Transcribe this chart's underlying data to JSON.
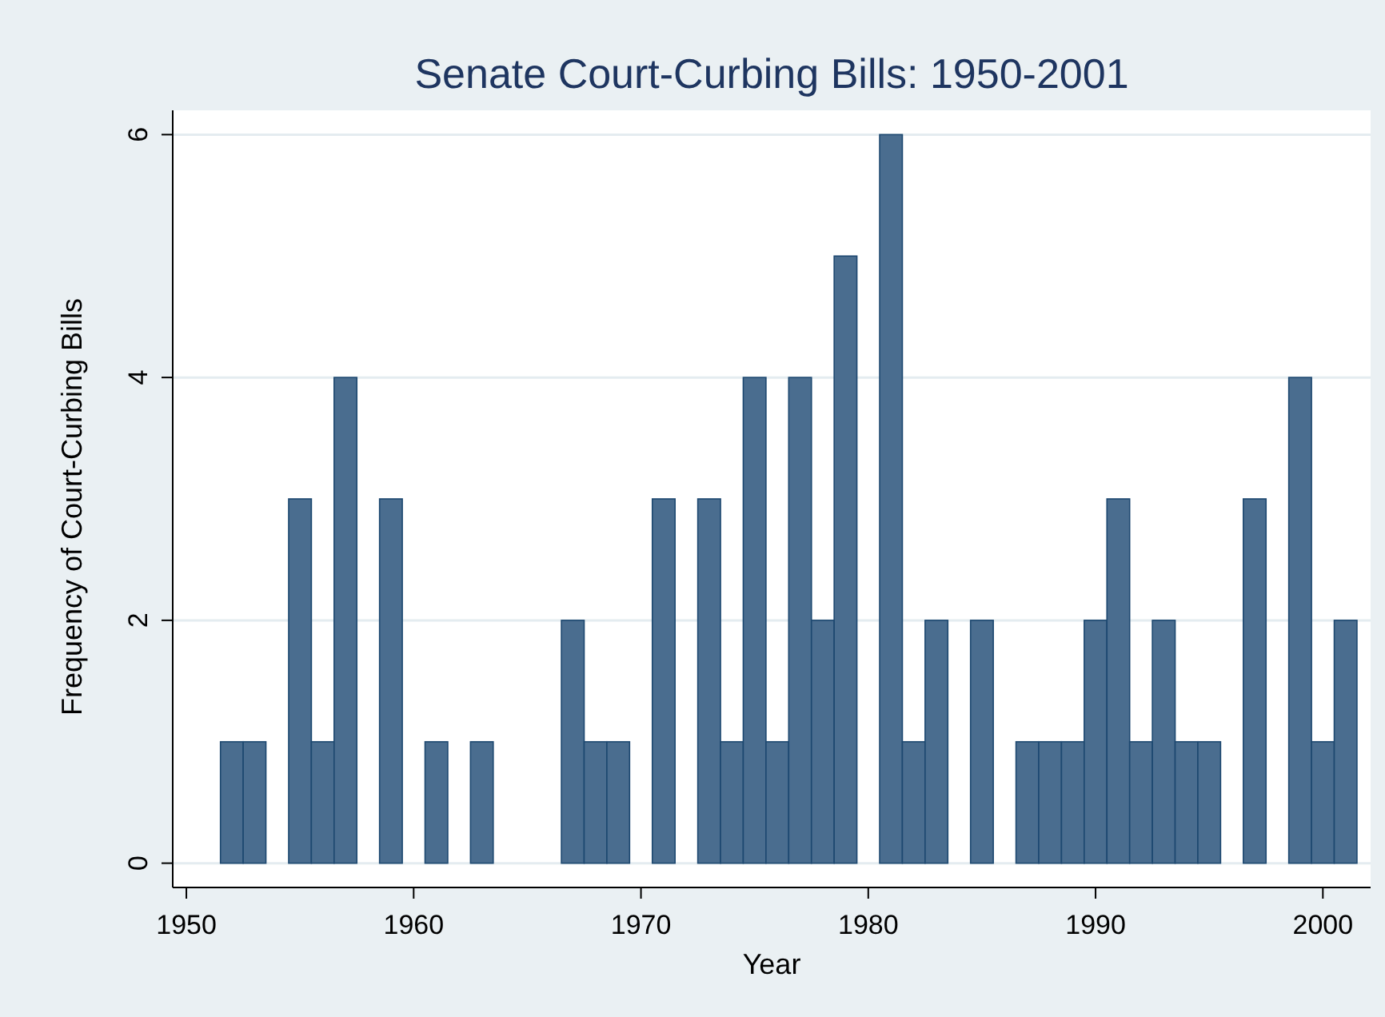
{
  "chart_data": {
    "type": "histogram",
    "title": "Senate Court-Curbing Bills: 1950-2001",
    "xlabel": "Year",
    "ylabel": "Frequency of Court-Curbing Bills",
    "bins": [
      1951.5,
      1952.5,
      1953.5,
      1954.5,
      1955.5,
      1956.5,
      1957.5,
      1958.5,
      1959.5,
      1960.5,
      1961.5,
      1962.5,
      1963.5,
      1964.5,
      1965.5,
      1966.5,
      1967.5,
      1968.5,
      1969.5,
      1970.5,
      1971.5,
      1972.5,
      1973.5,
      1974.5,
      1975.5,
      1976.5,
      1977.5,
      1978.5,
      1979.5,
      1980.5,
      1981.5,
      1982.5,
      1983.5,
      1984.5,
      1985.5,
      1986.5,
      1987.5,
      1988.5,
      1989.5,
      1990.5,
      1991.5,
      1992.5,
      1993.5,
      1994.5,
      1995.5,
      1996.5,
      1997.5,
      1998.5,
      1999.5,
      2000.5,
      2001.5
    ],
    "values": [
      1,
      1,
      0,
      3,
      1,
      4,
      0,
      3,
      0,
      1,
      0,
      1,
      0,
      0,
      0,
      2,
      1,
      1,
      0,
      3,
      0,
      3,
      1,
      4,
      1,
      4,
      2,
      5,
      0,
      6,
      1,
      2,
      0,
      2,
      0,
      1,
      1,
      1,
      2,
      3,
      1,
      2,
      1,
      1,
      0,
      3,
      0,
      4,
      1,
      2
    ],
    "color": "#4a6d8f",
    "xlim": [
      1949.4,
      2002.1
    ],
    "xticks": [
      1950,
      1960,
      1970,
      1980,
      1990,
      2000
    ],
    "ylim": [
      -0.2,
      6.2
    ],
    "yticks": [
      0,
      2,
      4,
      6
    ],
    "grid": "y"
  }
}
